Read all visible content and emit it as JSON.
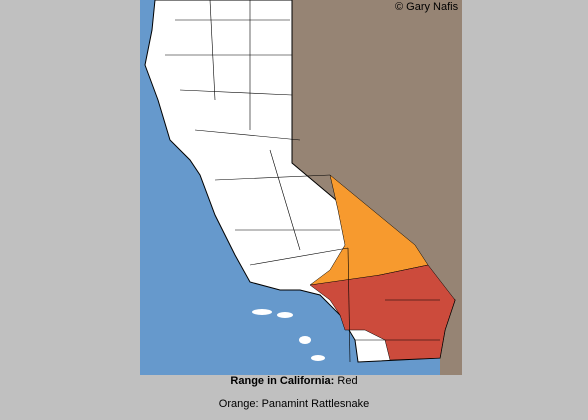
{
  "map": {
    "credit": "© Gary Nafis",
    "caption": {
      "label": "Range in California:",
      "value": "Red"
    },
    "note": "Orange: Panamint Rattlesnake"
  }
}
